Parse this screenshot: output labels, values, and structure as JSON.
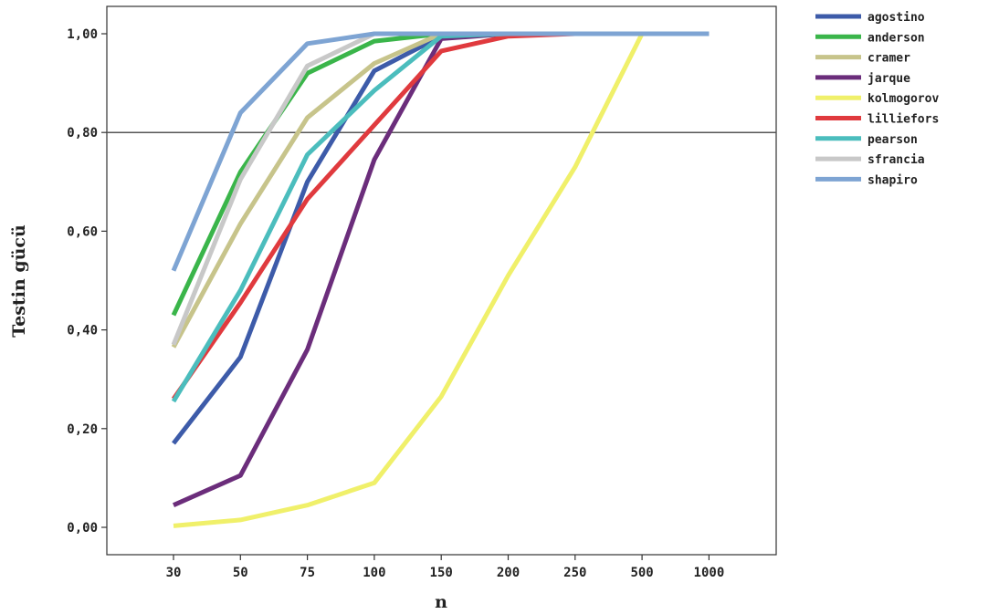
{
  "chart_data": {
    "type": "line",
    "xlabel": "n",
    "ylabel": "Testin gücü",
    "categories": [
      "30",
      "50",
      "75",
      "100",
      "150",
      "200",
      "250",
      "500",
      "1000"
    ],
    "yticks": [
      "0,00",
      "0,20",
      "0,40",
      "0,60",
      "0,80",
      "1,00"
    ],
    "ylim": [
      0,
      1.05
    ],
    "reference_line": 0.8,
    "grid": false,
    "legend_position": "right",
    "series": [
      {
        "name": "agostino",
        "color": "#3d5ba9",
        "values": [
          0.17,
          0.345,
          0.7,
          0.925,
          0.995,
          1.0,
          1.0,
          1.0,
          1.0
        ]
      },
      {
        "name": "anderson",
        "color": "#3ab54a",
        "values": [
          0.43,
          0.72,
          0.92,
          0.985,
          1.0,
          1.0,
          1.0,
          1.0,
          1.0
        ]
      },
      {
        "name": "cramer",
        "color": "#c7c48b",
        "values": [
          0.365,
          0.615,
          0.83,
          0.94,
          1.0,
          1.0,
          1.0,
          1.0,
          1.0
        ]
      },
      {
        "name": "jarque",
        "color": "#6b2d7b",
        "values": [
          0.045,
          0.105,
          0.36,
          0.745,
          0.99,
          1.0,
          1.0,
          1.0,
          1.0
        ]
      },
      {
        "name": "kolmogorov",
        "color": "#f0f06a",
        "values": [
          0.003,
          0.015,
          0.045,
          0.09,
          0.265,
          0.51,
          0.73,
          1.0,
          1.0
        ]
      },
      {
        "name": "lilliefors",
        "color": "#e03a3e",
        "values": [
          0.26,
          0.455,
          0.665,
          0.815,
          0.965,
          0.995,
          1.0,
          1.0,
          1.0
        ]
      },
      {
        "name": "pearson",
        "color": "#4bbdbd",
        "values": [
          0.255,
          0.48,
          0.755,
          0.885,
          0.995,
          1.0,
          1.0,
          1.0,
          1.0
        ]
      },
      {
        "name": "sfrancia",
        "color": "#c8c8c8",
        "values": [
          0.37,
          0.705,
          0.935,
          1.0,
          1.0,
          1.0,
          1.0,
          1.0,
          1.0
        ]
      },
      {
        "name": "shapiro",
        "color": "#7ea4d3",
        "values": [
          0.52,
          0.84,
          0.98,
          1.0,
          1.0,
          1.0,
          1.0,
          1.0,
          1.0
        ]
      }
    ]
  }
}
